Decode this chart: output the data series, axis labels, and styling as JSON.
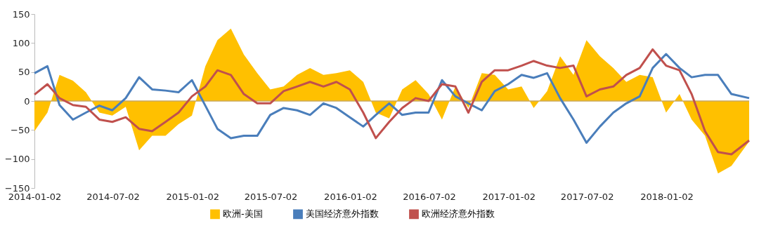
{
  "chart_data": {
    "type": "line",
    "x": [
      "2014-01-02",
      "2014-02-01",
      "2014-03-01",
      "2014-04-01",
      "2014-05-01",
      "2014-06-01",
      "2014-07-01",
      "2014-08-01",
      "2014-09-01",
      "2014-10-01",
      "2014-11-01",
      "2014-12-01",
      "2015-01-01",
      "2015-02-01",
      "2015-03-01",
      "2015-04-01",
      "2015-05-01",
      "2015-06-01",
      "2015-07-01",
      "2015-08-01",
      "2015-09-01",
      "2015-10-01",
      "2015-11-01",
      "2015-12-01",
      "2016-01-01",
      "2016-02-01",
      "2016-03-01",
      "2016-04-01",
      "2016-05-01",
      "2016-06-01",
      "2016-07-01",
      "2016-08-01",
      "2016-09-01",
      "2016-10-01",
      "2016-11-01",
      "2016-12-01",
      "2017-01-01",
      "2017-02-01",
      "2017-03-01",
      "2017-04-01",
      "2017-05-01",
      "2017-06-01",
      "2017-07-01",
      "2017-08-01",
      "2017-09-01",
      "2017-10-01",
      "2017-11-01",
      "2017-12-01",
      "2018-01-01",
      "2018-02-01",
      "2018-03-01",
      "2018-04-01",
      "2018-05-01",
      "2018-06-01",
      "2018-07-12"
    ],
    "series": [
      {
        "name": "欧洲-美国",
        "type": "area",
        "color": "#ffc000",
        "values": [
          -52,
          -20,
          45,
          35,
          15,
          -20,
          -25,
          -10,
          -85,
          -60,
          -60,
          -40,
          -25,
          60,
          105,
          125,
          80,
          48,
          20,
          25,
          45,
          57,
          45,
          48,
          53,
          33,
          -20,
          -30,
          20,
          36,
          12,
          -32,
          25,
          -12,
          48,
          45,
          20,
          25,
          -12,
          17,
          77,
          45,
          105,
          77,
          57,
          33,
          45,
          41,
          -20,
          12,
          -32,
          -60,
          -125,
          -112,
          -70
        ]
      },
      {
        "name": "美国经济意外指数",
        "color": "#4a7ebb",
        "values": [
          48,
          60,
          -7,
          -32,
          -20,
          -8,
          -16,
          5,
          41,
          20,
          18,
          15,
          36,
          -8,
          -48,
          -64,
          -60,
          -60,
          -24,
          -12,
          -16,
          -24,
          -4,
          -12,
          -28,
          -44,
          -24,
          -4,
          -24,
          -20,
          -20,
          36,
          8,
          -4,
          -16,
          17,
          29,
          45,
          40,
          48,
          5,
          -32,
          -72,
          -44,
          -20,
          -4,
          8,
          57,
          81,
          57,
          41,
          45,
          45,
          12,
          5
        ]
      },
      {
        "name": "欧洲经济意外指数",
        "color": "#c0504d",
        "values": [
          11,
          29,
          5,
          -7,
          -10,
          -32,
          -36,
          -28,
          -48,
          -52,
          -36,
          -20,
          8,
          25,
          53,
          45,
          12,
          -4,
          -4,
          17,
          25,
          33,
          25,
          33,
          20,
          -20,
          -64,
          -36,
          -12,
          5,
          0,
          29,
          25,
          -20,
          33,
          53,
          53,
          61,
          69,
          61,
          57,
          61,
          8,
          20,
          25,
          45,
          57,
          89,
          61,
          53,
          12,
          -52,
          -88,
          -92,
          -68
        ]
      }
    ],
    "xlim": [
      "2014-01-02",
      "2018-07-12"
    ],
    "xticks": [
      "2014-01-02",
      "2014-07-02",
      "2015-01-02",
      "2015-07-02",
      "2016-01-02",
      "2016-07-02",
      "2017-01-02",
      "2017-07-02",
      "2018-01-02"
    ],
    "ylim": [
      -150,
      150
    ],
    "yticks": [
      -150,
      -100,
      -50,
      0,
      50,
      100,
      150
    ],
    "ref_lines": [
      {
        "axis": "y",
        "value": 0,
        "color": "#c8a860"
      }
    ],
    "grid": false,
    "legend": "bottom"
  }
}
